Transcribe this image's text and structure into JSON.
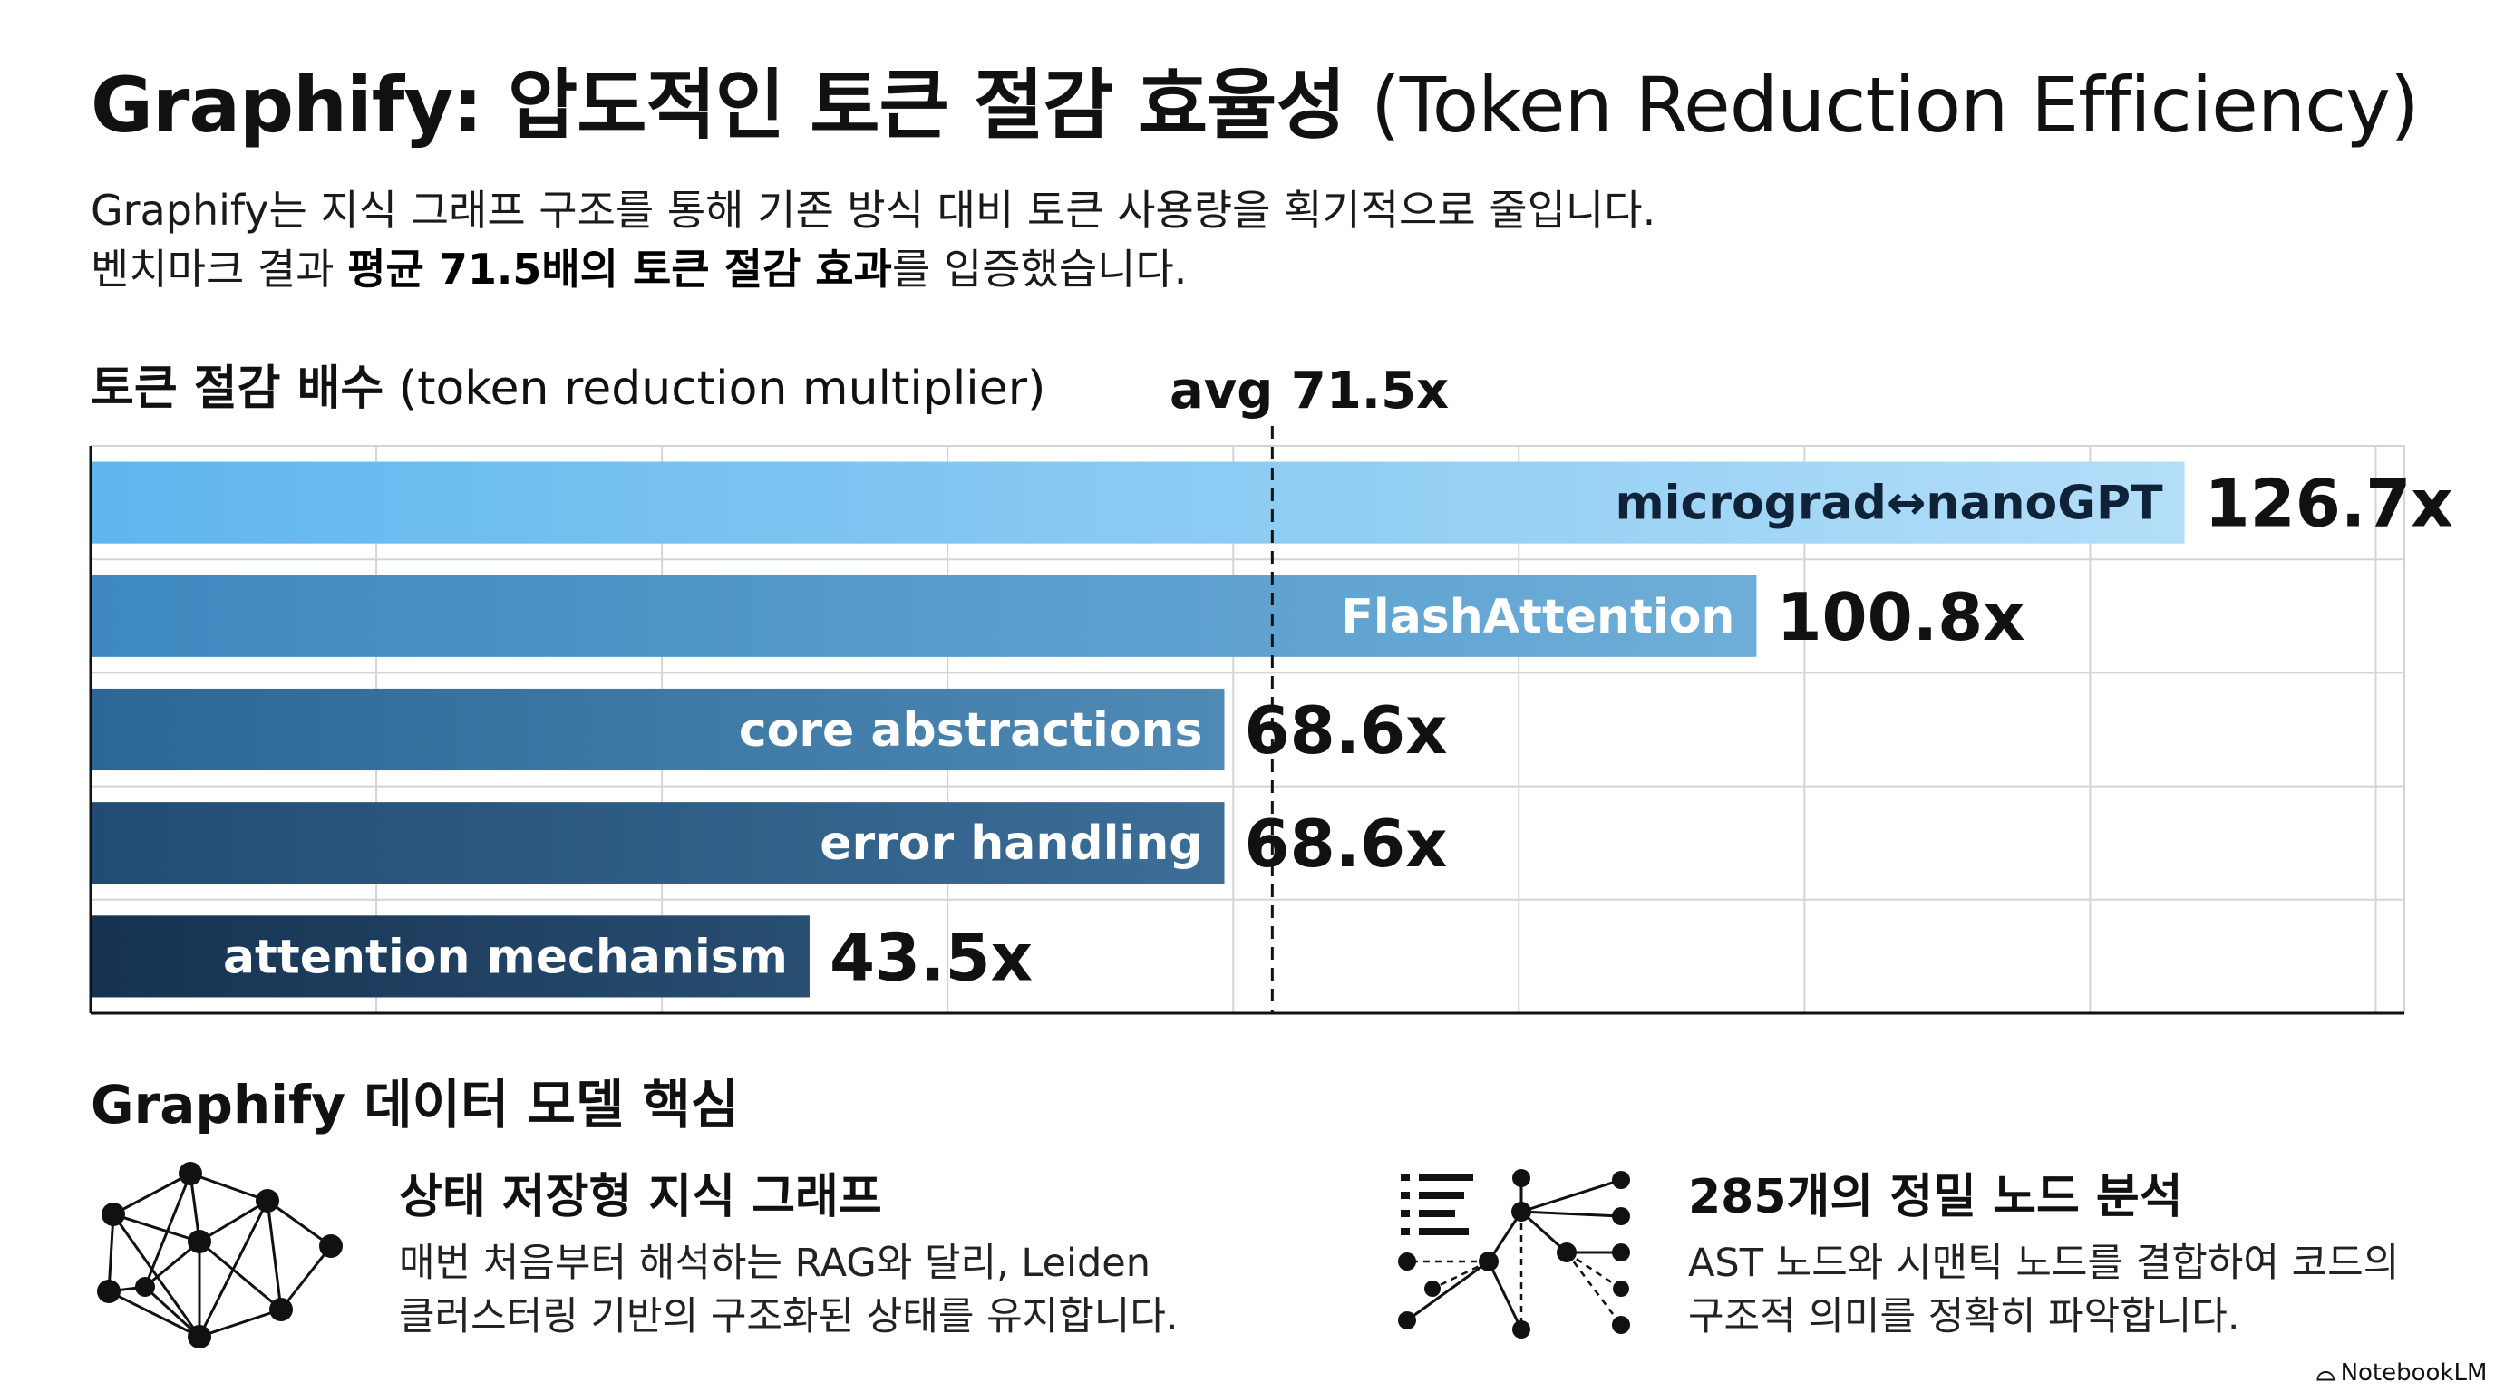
{
  "title": {
    "main": "Graphify: 압도적인 토큰 절감 효율성",
    "english": "(Token Reduction Efficiency)"
  },
  "intro": {
    "line1": "Graphify는 지식 그래프 구조를 통해 기존 방식 대비 토큰 사용량을 획기적으로 줄입니다.",
    "line2_pre": "벤치마크 결과 ",
    "line2_bold": "평균 71.5배의 토큰 절감 효과",
    "line2_post": "를 입증했습니다."
  },
  "chart_heading": {
    "bold": "토큰 절감 배수",
    "normal": "(token reduction multiplier)"
  },
  "chart_data": {
    "type": "bar",
    "orientation": "horizontal",
    "categories": [
      "micrograd↔nanoGPT",
      "FlashAttention",
      "core abstractions",
      "error handling",
      "attention mechanism"
    ],
    "values": [
      126.7,
      100.8,
      68.6,
      68.6,
      43.5
    ],
    "value_labels": [
      "126.7x",
      "100.8x",
      "68.6x",
      "68.6x",
      "43.5x"
    ],
    "bar_colors": [
      "#7cc4f2",
      "#5aa3d0",
      "#3f7ca8",
      "#305d85",
      "#1f3e5c"
    ],
    "average": {
      "value": 71.5,
      "label": "avg 71.5x"
    },
    "xlim": [
      0,
      140
    ],
    "grid": true,
    "legend": "none"
  },
  "section": {
    "heading": "Graphify 데이터 모델 핵심"
  },
  "features": [
    {
      "icon": "network-graph-icon",
      "title": "상태 저장형 지식 그래프",
      "desc_line1": "매번 처음부터 해석하는 RAG와 달리, Leiden",
      "desc_line2": "클러스터링 기반의 구조화된 상태를 유지합니다."
    },
    {
      "icon": "node-tree-icon",
      "title": "285개의 정밀 노드 분석",
      "desc_line1": "AST 노드와 시맨틱 노드를 결합하여 코드의",
      "desc_line2": "구조적 의미를 정확히 파악합니다."
    }
  ],
  "watermark": {
    "glyph": "⌓",
    "text": "NotebookLM"
  }
}
